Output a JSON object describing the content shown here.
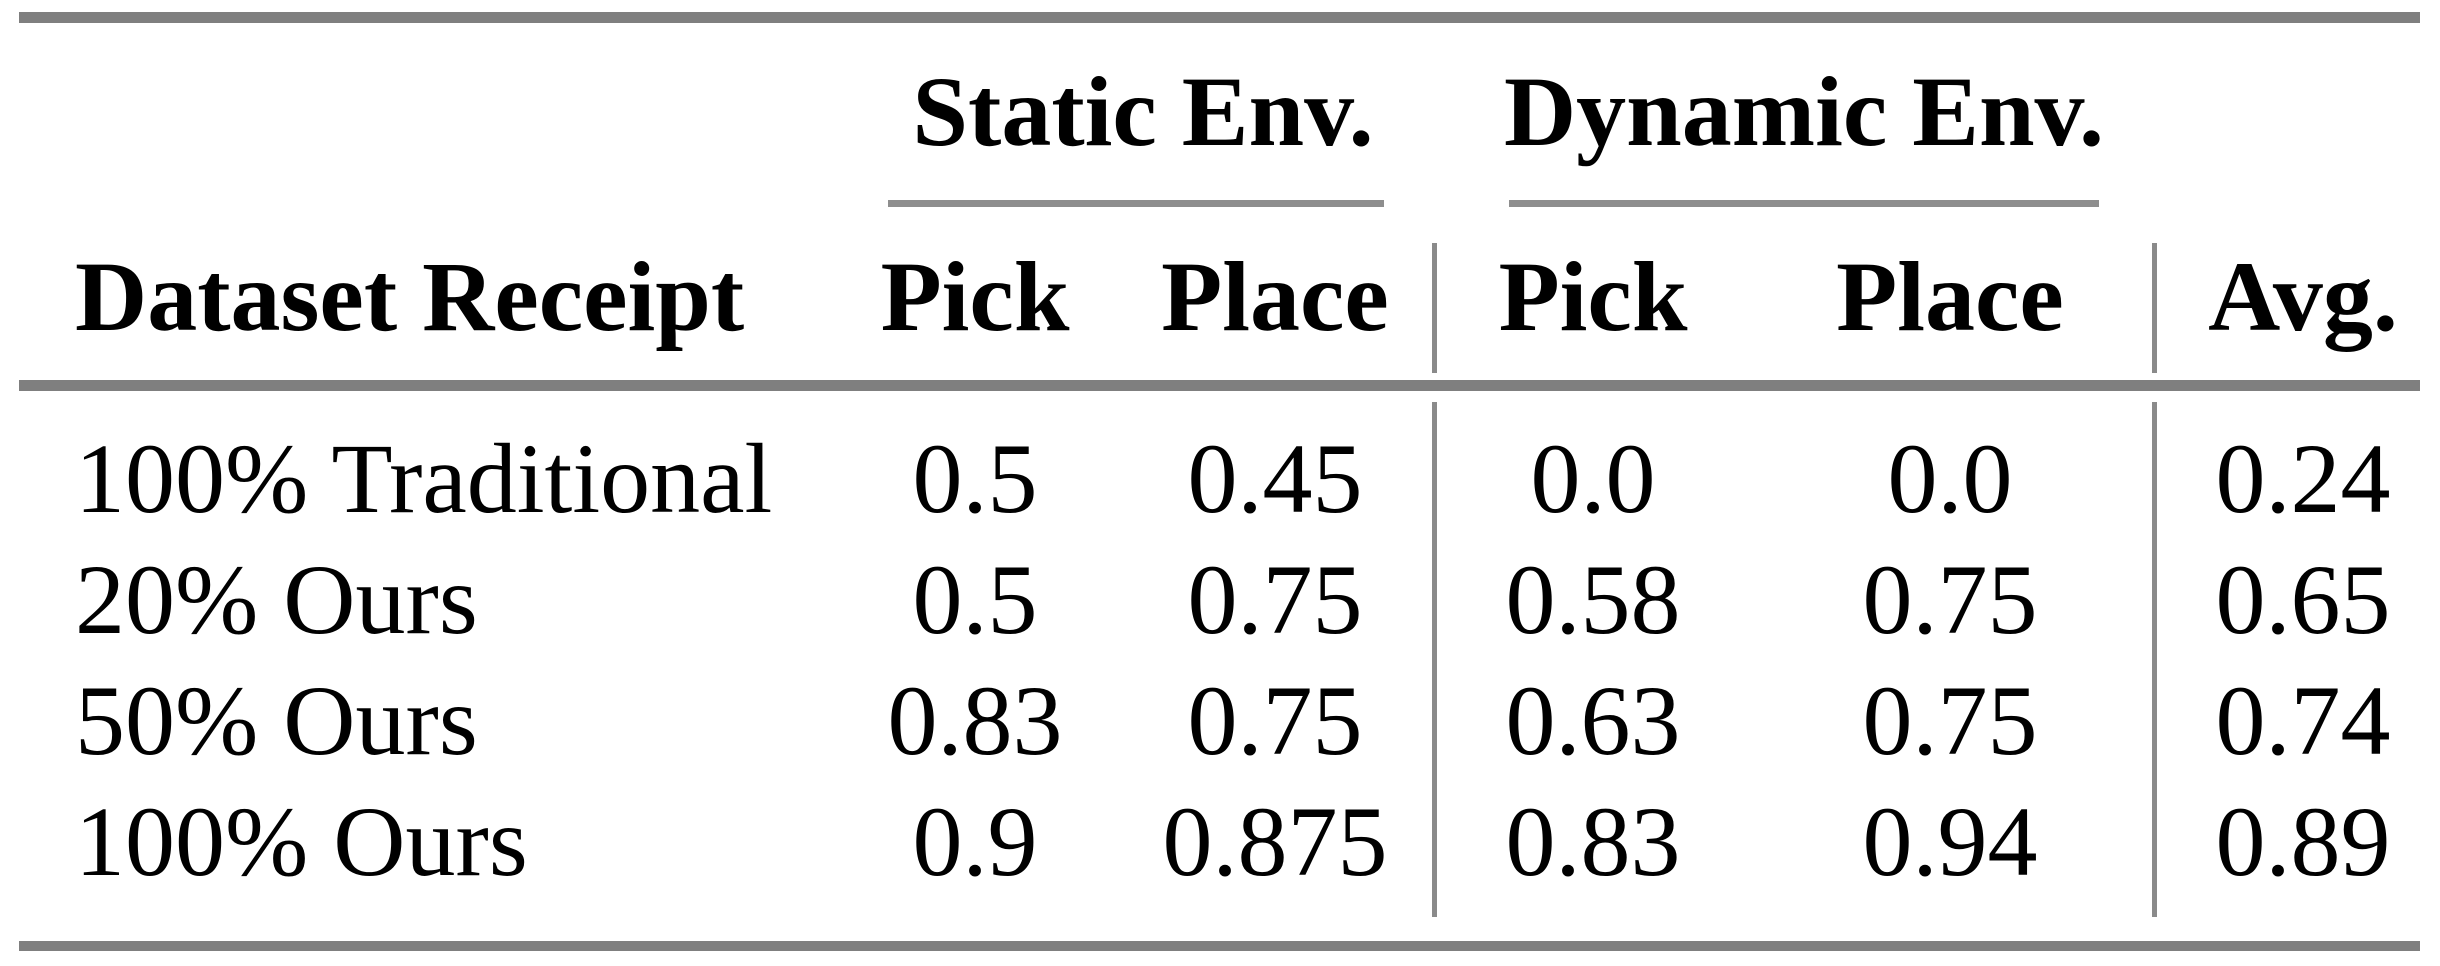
{
  "colors": {
    "background": "#ffffff",
    "text": "#000000",
    "thick_rule": "#7f7f7f",
    "thin_rule": "#8e8e8e",
    "vertical_rule": "#8a8a8a"
  },
  "table": {
    "group_headers": {
      "static": "Static Env.",
      "dynamic": "Dynamic Env."
    },
    "column_headers": {
      "dataset": "Dataset Receipt",
      "static_pick": "Pick",
      "static_place": "Place",
      "dynamic_pick": "Pick",
      "dynamic_place": "Place",
      "avg": "Avg."
    },
    "rows": [
      {
        "dataset": "100% Traditional",
        "static_pick": "0.5",
        "static_place": "0.45",
        "dynamic_pick": "0.0",
        "dynamic_place": "0.0",
        "avg": "0.24"
      },
      {
        "dataset": "20% Ours",
        "static_pick": "0.5",
        "static_place": "0.75",
        "dynamic_pick": "0.58",
        "dynamic_place": "0.75",
        "avg": "0.65"
      },
      {
        "dataset": "50% Ours",
        "static_pick": "0.83",
        "static_place": "0.75",
        "dynamic_pick": "0.63",
        "dynamic_place": "0.75",
        "avg": "0.74"
      },
      {
        "dataset": "100% Ours",
        "static_pick": "0.9",
        "static_place": "0.875",
        "dynamic_pick": "0.83",
        "dynamic_place": "0.94",
        "avg": "0.89"
      }
    ]
  },
  "chart_data": {
    "type": "table",
    "columns": [
      "Dataset Receipt",
      "Static Env. Pick",
      "Static Env. Place",
      "Dynamic Env. Pick",
      "Dynamic Env. Place",
      "Avg."
    ],
    "rows": [
      [
        "100% Traditional",
        0.5,
        0.45,
        0.0,
        0.0,
        0.24
      ],
      [
        "20% Ours",
        0.5,
        0.75,
        0.58,
        0.75,
        0.65
      ],
      [
        "50% Ours",
        0.83,
        0.75,
        0.63,
        0.75,
        0.74
      ],
      [
        "100% Ours",
        0.9,
        0.875,
        0.83,
        0.94,
        0.89
      ]
    ]
  }
}
